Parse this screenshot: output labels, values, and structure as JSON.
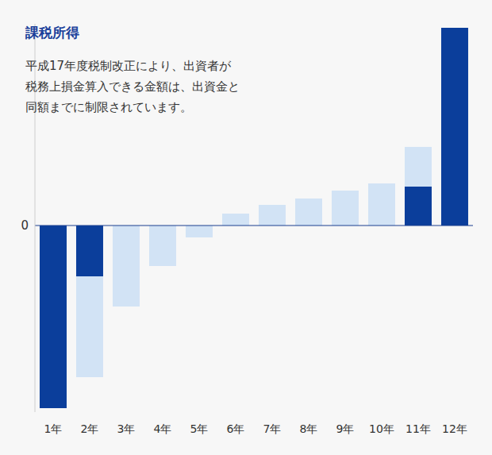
{
  "chart_data": {
    "type": "bar",
    "title": "課税所得",
    "subtitle": "平成17年度税制改正により、出資者が\n税務上損金算入できる金額は、出資金と\n同額までに制限されています。",
    "categories": [
      "1年",
      "2年",
      "3年",
      "4年",
      "5年",
      "6年",
      "7年",
      "8年",
      "9年",
      "10年",
      "11年",
      "12年"
    ],
    "series": [
      {
        "color": "#0b3e9b",
        "values": [
          -230,
          -64,
          null,
          null,
          null,
          null,
          null,
          null,
          null,
          null,
          49,
          249
        ]
      },
      {
        "color": "#d2e3f5",
        "values": [
          null,
          -127,
          -102,
          -51,
          -15,
          15,
          26,
          34,
          44,
          53,
          50,
          null
        ]
      }
    ],
    "stacked": true,
    "ylim": [
      -235,
      254
    ],
    "yticks": [
      0
    ],
    "grid": false
  }
}
